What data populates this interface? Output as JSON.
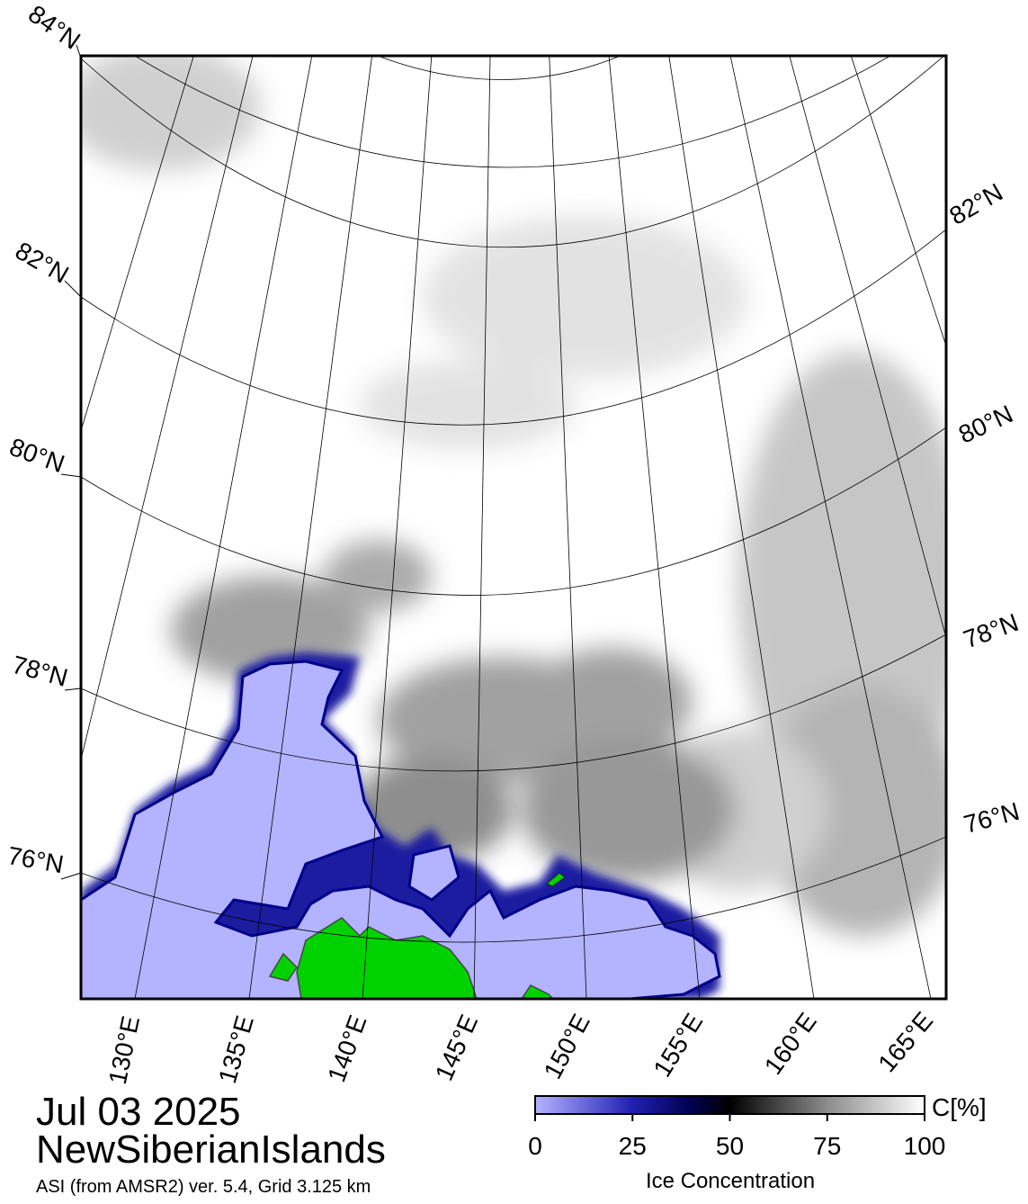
{
  "map": {
    "lat_labels_left": [
      "84°N",
      "82°N",
      "80°N",
      "78°N",
      "76°N"
    ],
    "lat_labels_right": [
      "82°N",
      "80°N",
      "78°N",
      "76°N"
    ],
    "lon_labels": [
      "130°E",
      "135°E",
      "140°E",
      "145°E",
      "150°E",
      "155°E",
      "160°E",
      "165°E"
    ]
  },
  "title": {
    "date": "Jul 03 2025",
    "region": "NewSiberianIslands",
    "source": "ASI (from AMSR2) ver. 5.4,  Grid 3.125 km"
  },
  "colorbar": {
    "label": "Ice Concentration",
    "unit": "C[%]",
    "lim": [
      0,
      100
    ],
    "ticks": [
      0,
      25,
      50,
      75,
      100
    ]
  }
}
